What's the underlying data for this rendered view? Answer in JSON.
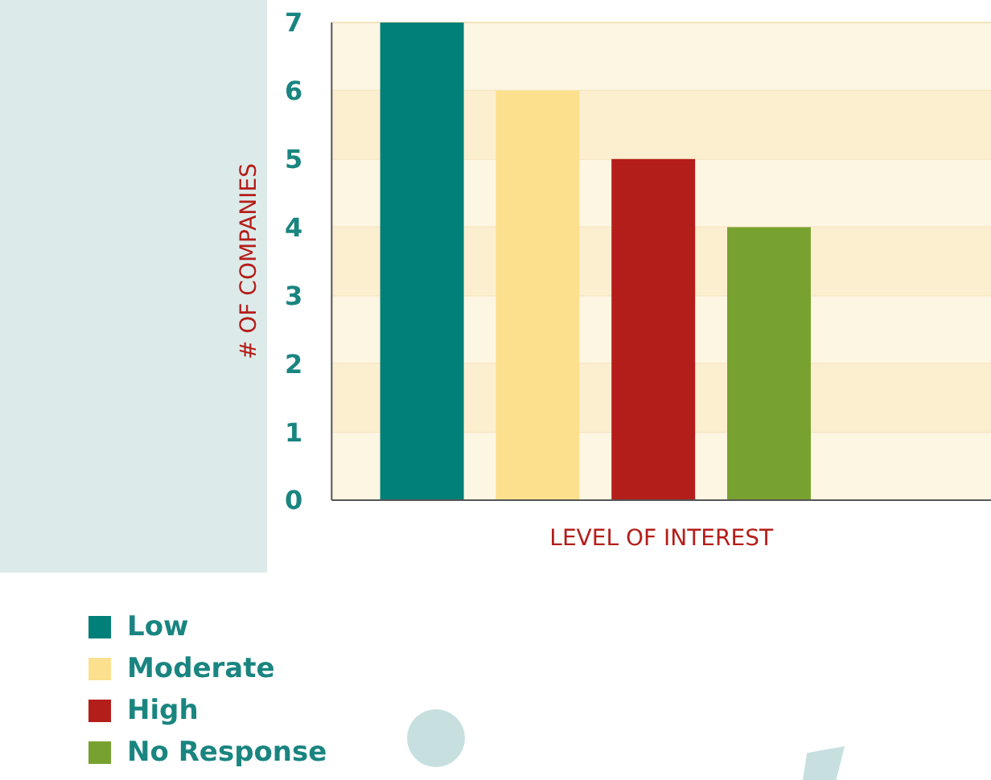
{
  "chart_data": {
    "type": "bar",
    "xlabel": "LEVEL OF INTEREST",
    "ylabel": "# OF COMPANIES",
    "categories": [
      null,
      null,
      null,
      null
    ],
    "stacked": true,
    "series": [
      {
        "name": "Low",
        "color": "#008078",
        "values": [
          7,
          null,
          null,
          null
        ]
      },
      {
        "name": "Moderate",
        "color": "#fde08e",
        "values": [
          null,
          6,
          null,
          null
        ]
      },
      {
        "name": "High",
        "color": "#b41e1a",
        "values": [
          null,
          null,
          5,
          null
        ]
      },
      {
        "name": "No Response",
        "color": "#78a22f",
        "values": [
          null,
          null,
          null,
          4
        ]
      }
    ],
    "bands": [
      {
        "axis": "y",
        "from": 1,
        "to": 2,
        "color": "#fcefd0"
      },
      {
        "axis": "y",
        "from": 3,
        "to": 4,
        "color": "#fcefd0"
      },
      {
        "axis": "y",
        "from": 5,
        "to": 6,
        "color": "#fcefd0"
      }
    ],
    "ylim": [
      0,
      7
    ],
    "yticks": [
      0,
      1,
      2,
      3,
      4,
      5,
      6,
      7
    ],
    "grid": "y",
    "legend": "bottom left"
  }
}
